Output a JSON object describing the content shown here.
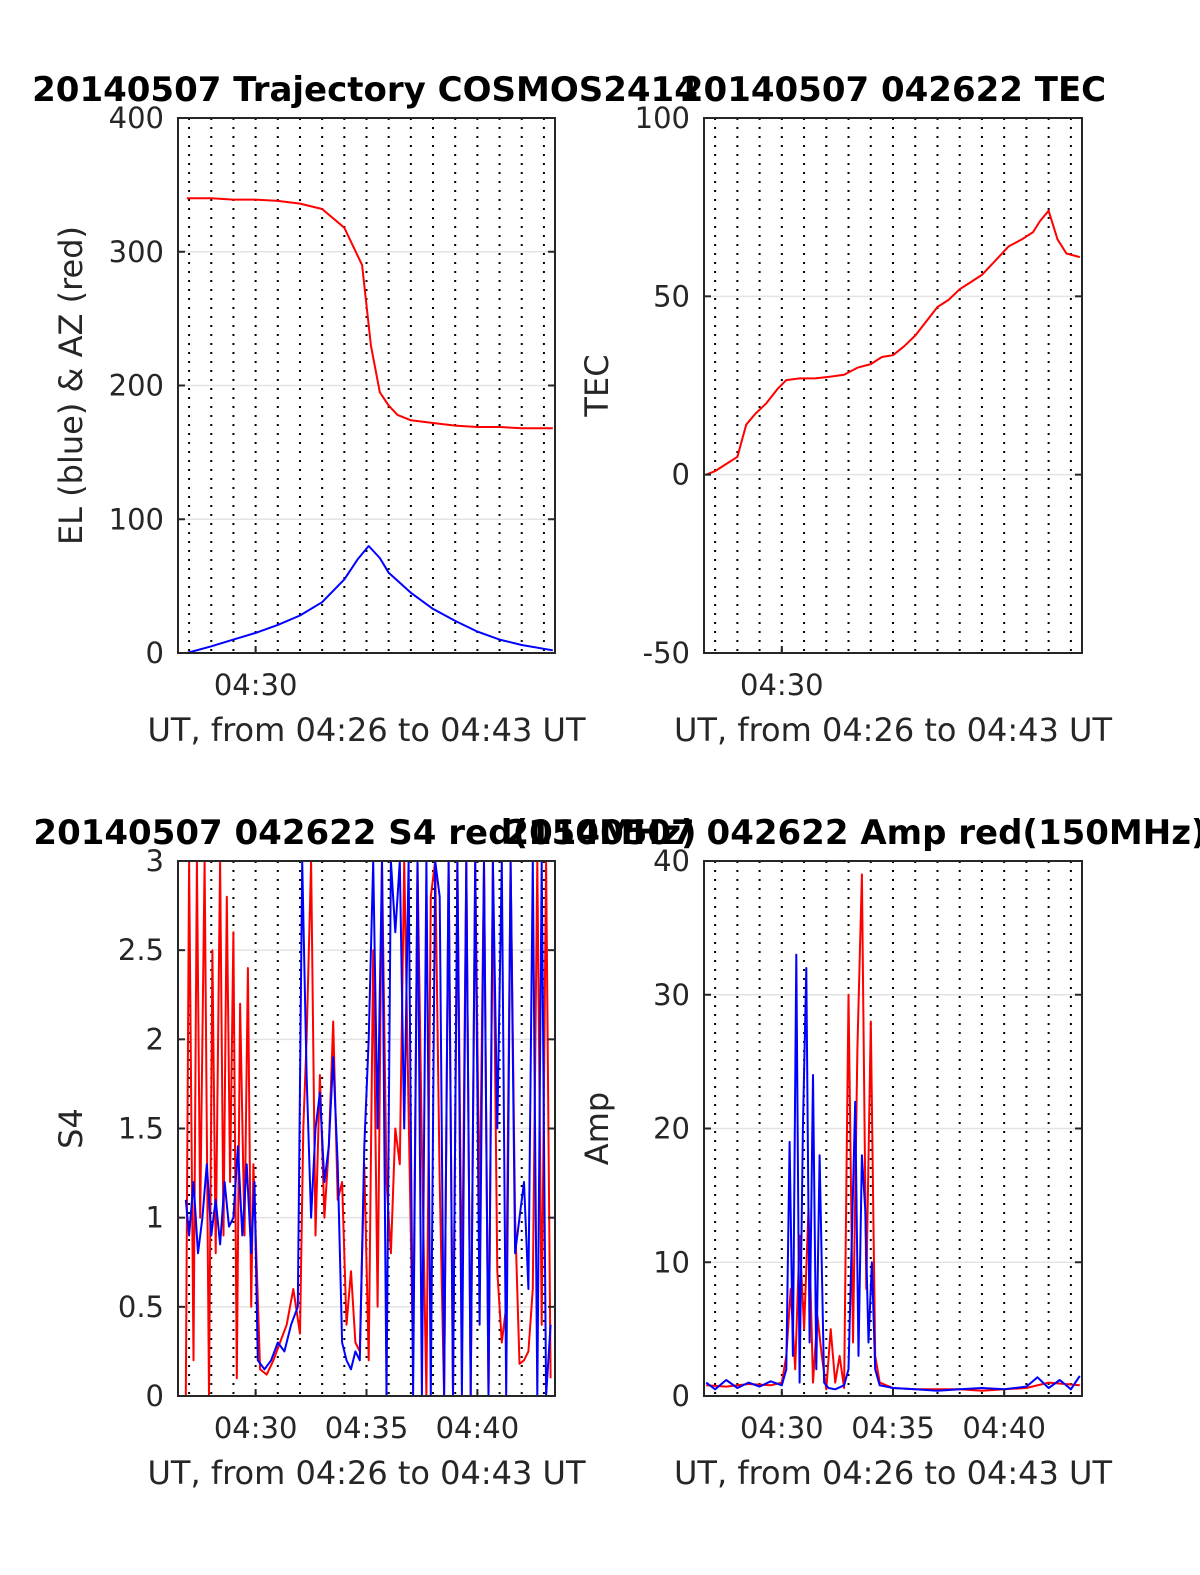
{
  "colors": {
    "red": "#ff0000",
    "blue": "#0000ff",
    "axis": "#262626",
    "hgrid": "#e3e3e3"
  },
  "chart_data": [
    {
      "id": "traj",
      "type": "line",
      "title": "20140507 Trajectory COSMOS2414",
      "xlabel": "UT, from 04:26 to 04:43 UT",
      "ylabel": "EL (blue) & AZ (red)",
      "xlim": [
        26.5,
        43.5
      ],
      "ylim": [
        0,
        400
      ],
      "yticks": [
        0,
        100,
        200,
        300,
        400
      ],
      "ytick_labels": [
        "0",
        "100",
        "200",
        "300",
        "400"
      ],
      "xticks": [
        30
      ],
      "xtick_labels": [
        "04:30"
      ],
      "vgrid_minutes": [
        27,
        28,
        29,
        30,
        31,
        32,
        33,
        34,
        35,
        36,
        37,
        38,
        39,
        40,
        41,
        42,
        43
      ],
      "series": [
        {
          "color": "red",
          "x": [
            26.9,
            28,
            29,
            30,
            31,
            32,
            33,
            34,
            34.8,
            35.2,
            35.6,
            36,
            36.4,
            37,
            38,
            39,
            40,
            41,
            42,
            43.4
          ],
          "y": [
            340,
            340,
            339,
            339,
            338,
            336,
            332,
            318,
            290,
            230,
            195,
            185,
            178,
            174,
            172,
            170,
            169,
            169,
            168,
            168
          ]
        },
        {
          "color": "blue",
          "x": [
            26.9,
            28,
            29,
            30,
            31,
            32,
            33,
            34,
            34.6,
            35.1,
            35.6,
            36,
            37,
            38,
            39,
            40,
            41,
            42,
            43.4
          ],
          "y": [
            0,
            5,
            10,
            15,
            21,
            28,
            38,
            55,
            70,
            80,
            71,
            60,
            45,
            33,
            24,
            16,
            10,
            6,
            2
          ]
        }
      ]
    },
    {
      "id": "tec",
      "type": "line",
      "title": "20140507 042622 TEC",
      "xlabel": "UT, from 04:26 to 04:43 UT",
      "ylabel": "TEC",
      "xlim": [
        26.5,
        43.5
      ],
      "ylim": [
        -50,
        100
      ],
      "yticks": [
        -50,
        0,
        50,
        100
      ],
      "ytick_labels": [
        "-50",
        "0",
        "50",
        "100"
      ],
      "xticks": [
        30
      ],
      "xtick_labels": [
        "04:30"
      ],
      "vgrid_minutes": [
        27,
        28,
        29,
        30,
        31,
        32,
        33,
        34,
        35,
        36,
        37,
        38,
        39,
        40,
        41,
        42,
        43
      ],
      "series": [
        {
          "color": "red",
          "x": [
            26.6,
            27,
            27.5,
            28,
            28.4,
            28.8,
            29.3,
            29.8,
            30.2,
            30.8,
            31.5,
            32.2,
            32.8,
            33.4,
            34.0,
            34.5,
            35.0,
            35.5,
            36.0,
            36.5,
            37.0,
            37.5,
            38.0,
            38.5,
            39.0,
            39.6,
            40.2,
            40.8,
            41.3,
            41.6,
            42.0,
            42.4,
            42.8,
            43.4
          ],
          "y": [
            0,
            1,
            3,
            5,
            14,
            17,
            20,
            24,
            26.5,
            27,
            27,
            27.5,
            28,
            30,
            31,
            33,
            33.5,
            36,
            39,
            43,
            47,
            49,
            52,
            54,
            56,
            60,
            64,
            66,
            68,
            71,
            74,
            66,
            62,
            61
          ]
        }
      ]
    },
    {
      "id": "s4",
      "type": "line",
      "title": "20140507 042622 S4 red(150MHz)",
      "xlabel": "UT, from 04:26 to 04:43 UT",
      "ylabel": "S4",
      "xlim": [
        26.5,
        43.5
      ],
      "ylim": [
        0,
        3
      ],
      "yticks": [
        0,
        0.5,
        1,
        1.5,
        2,
        2.5,
        3
      ],
      "ytick_labels": [
        "0",
        "0.5",
        "1",
        "1.5",
        "2",
        "2.5",
        "3"
      ],
      "xticks": [
        30,
        35,
        40
      ],
      "xtick_labels": [
        "04:30",
        "04:35",
        "04:40"
      ],
      "vgrid_minutes": [
        27,
        28,
        29,
        30,
        31,
        32,
        33,
        34,
        35,
        36,
        37,
        38,
        39,
        40,
        41,
        42,
        43
      ],
      "series": [
        {
          "color": "red",
          "x": [
            26.85,
            27.0,
            27.2,
            27.35,
            27.5,
            27.7,
            27.9,
            28.05,
            28.2,
            28.4,
            28.55,
            28.7,
            28.85,
            29.0,
            29.15,
            29.3,
            29.5,
            29.65,
            29.8,
            29.9,
            30.2,
            30.5,
            30.8,
            31.1,
            31.4,
            31.7,
            32.0,
            32.15,
            32.3,
            32.5,
            32.7,
            32.9,
            33.1,
            33.3,
            33.5,
            33.7,
            33.9,
            34.1,
            34.3,
            34.5,
            34.7,
            34.9,
            35.1,
            35.3,
            35.5,
            35.7,
            35.9,
            36.1,
            36.3,
            36.5,
            36.7,
            36.9,
            37.1,
            37.3,
            37.5,
            37.7,
            37.9,
            38.1,
            38.3,
            38.5,
            38.7,
            38.9,
            39.1,
            39.3,
            39.5,
            39.7,
            39.9,
            40.1,
            40.3,
            40.5,
            40.7,
            40.9,
            41.1,
            41.3,
            41.5,
            41.7,
            41.9,
            42.1,
            42.3,
            42.5,
            42.7,
            42.9,
            43.1,
            43.3
          ],
          "y": [
            0,
            3,
            0.2,
            3,
            1.0,
            3,
            0,
            2.5,
            0.8,
            3,
            0.9,
            2.8,
            1.2,
            2.6,
            0.1,
            2.2,
            0.9,
            2.4,
            0.5,
            1.3,
            0.15,
            0.12,
            0.2,
            0.3,
            0.4,
            0.6,
            0.35,
            1.5,
            2.0,
            3,
            0.9,
            1.8,
            1.0,
            1.4,
            2.1,
            1.1,
            1.2,
            0.4,
            0.7,
            0.3,
            0.25,
            1.3,
            0.2,
            2.5,
            0.5,
            3,
            1.2,
            0.8,
            1.5,
            1.3,
            3,
            1.6,
            0.2,
            3,
            1.4,
            0,
            2.8,
            3,
            1.2,
            0,
            3,
            0,
            3,
            0.5,
            3,
            0,
            3,
            1.0,
            3,
            0,
            3,
            0.7,
            0.3,
            0.5,
            3,
            1.0,
            0.18,
            0.2,
            0.25,
            0.6,
            3,
            0.4,
            3,
            0.1
          ]
        },
        {
          "color": "blue",
          "x": [
            26.85,
            27.0,
            27.2,
            27.4,
            27.6,
            27.8,
            28.0,
            28.2,
            28.4,
            28.6,
            28.8,
            29.0,
            29.2,
            29.4,
            29.6,
            29.8,
            29.95,
            30.1,
            30.4,
            30.7,
            31.0,
            31.3,
            31.6,
            31.9,
            32.1,
            32.3,
            32.5,
            32.7,
            32.9,
            33.1,
            33.3,
            33.5,
            33.7,
            33.9,
            34.1,
            34.3,
            34.5,
            34.7,
            34.9,
            35.1,
            35.3,
            35.5,
            35.7,
            35.9,
            36.1,
            36.3,
            36.5,
            36.7,
            36.9,
            37.1,
            37.3,
            37.5,
            37.7,
            37.9,
            38.1,
            38.3,
            38.5,
            38.7,
            38.9,
            39.1,
            39.3,
            39.5,
            39.7,
            39.9,
            40.1,
            40.3,
            40.5,
            40.7,
            40.9,
            41.1,
            41.3,
            41.5,
            41.7,
            41.9,
            42.1,
            42.3,
            42.5,
            42.7,
            42.9,
            43.1,
            43.3
          ],
          "y": [
            1.1,
            0.9,
            1.2,
            0.8,
            1.0,
            1.3,
            0.9,
            1.1,
            0.85,
            1.2,
            0.95,
            1.0,
            1.4,
            0.9,
            1.3,
            0.8,
            1.2,
            0.2,
            0.15,
            0.2,
            0.3,
            0.25,
            0.4,
            0.5,
            3,
            1.8,
            1.0,
            1.5,
            1.7,
            1.2,
            1.4,
            1.9,
            1.3,
            0.3,
            0.2,
            0.15,
            0.25,
            0.2,
            1.4,
            2.0,
            3,
            1.5,
            3,
            0,
            3,
            2.6,
            3,
            1.5,
            3,
            0,
            3,
            0,
            3,
            0,
            3,
            2.8,
            0,
            3,
            0,
            3,
            0,
            3,
            0,
            3,
            0.4,
            3,
            0,
            3,
            1.5,
            3,
            0,
            3,
            0.8,
            1.0,
            1.2,
            0.6,
            3,
            0,
            3,
            0,
            0.4
          ]
        }
      ]
    },
    {
      "id": "amp",
      "type": "line",
      "title": "20140507 042622 Amp red(150MHz)",
      "xlabel": "UT, from 04:26 to 04:43 UT",
      "ylabel": "Amp",
      "xlim": [
        26.5,
        43.5
      ],
      "ylim": [
        0,
        40
      ],
      "yticks": [
        0,
        10,
        20,
        30,
        40
      ],
      "ytick_labels": [
        "0",
        "10",
        "20",
        "30",
        "40"
      ],
      "xticks": [
        30,
        35,
        40
      ],
      "xtick_labels": [
        "04:30",
        "04:35",
        "04:40"
      ],
      "vgrid_minutes": [
        27,
        28,
        29,
        30,
        31,
        32,
        33,
        34,
        35,
        36,
        37,
        38,
        39,
        40,
        41,
        42,
        43
      ],
      "series": [
        {
          "color": "red",
          "x": [
            26.6,
            27.5,
            28.5,
            29.5,
            30.0,
            30.2,
            30.4,
            30.6,
            30.8,
            31.0,
            31.2,
            31.4,
            31.6,
            31.8,
            32.0,
            32.2,
            32.4,
            32.6,
            32.8,
            33.0,
            33.2,
            33.4,
            33.6,
            33.8,
            34.0,
            34.2,
            34.4,
            35,
            36,
            37,
            38,
            39,
            40,
            41,
            42,
            43.4
          ],
          "y": [
            0.8,
            0.7,
            0.9,
            0.8,
            1.0,
            3,
            8,
            2,
            12,
            5,
            14,
            1,
            6,
            3,
            0.5,
            5,
            1,
            3,
            0.6,
            30,
            4,
            26,
            39,
            8,
            28,
            3,
            1,
            0.6,
            0.5,
            0.5,
            0.5,
            0.4,
            0.5,
            0.6,
            1.0,
            0.8
          ]
        },
        {
          "color": "blue",
          "x": [
            26.6,
            27.0,
            27.5,
            28.0,
            28.5,
            29.0,
            29.5,
            30.0,
            30.2,
            30.35,
            30.5,
            30.65,
            30.8,
            30.95,
            31.1,
            31.25,
            31.4,
            31.55,
            31.7,
            31.9,
            32.1,
            32.4,
            32.8,
            33.0,
            33.15,
            33.3,
            33.45,
            33.6,
            33.75,
            33.9,
            34.05,
            34.2,
            34.4,
            35,
            36,
            37,
            38,
            39,
            40,
            41,
            41.5,
            42,
            42.5,
            43,
            43.4
          ],
          "y": [
            1.0,
            0.5,
            1.2,
            0.6,
            1.0,
            0.7,
            1.1,
            0.8,
            2,
            19,
            3,
            33,
            1,
            20,
            32,
            4,
            24,
            2,
            18,
            1,
            0.6,
            0.5,
            0.8,
            2,
            12,
            22,
            3,
            18,
            14,
            4,
            10,
            2,
            0.8,
            0.6,
            0.5,
            0.4,
            0.5,
            0.6,
            0.5,
            0.7,
            1.4,
            0.6,
            1.2,
            0.5,
            1.5
          ]
        }
      ]
    }
  ]
}
